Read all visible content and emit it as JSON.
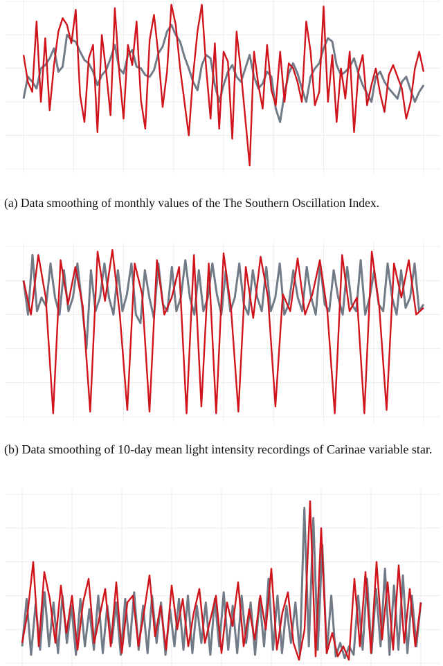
{
  "colors": {
    "observed": "#717b88",
    "smoothed": "#d0141c",
    "grid": "#ececec"
  },
  "captions": {
    "a": "(a) Data smoothing of monthly values of the The Southern Oscillation Index.",
    "b": "(b) Data smoothing of 10-day mean light intensity recordings of Carinae variable star."
  },
  "chart_data": [
    {
      "type": "line",
      "title": "",
      "xlabel": "",
      "ylabel": "",
      "grid": true,
      "ylim": [
        0,
        1
      ],
      "series": [
        {
          "values": [
            0.42,
            0.55,
            0.52,
            0.48,
            0.6,
            0.62,
            0.66,
            0.72,
            0.58,
            0.61,
            0.8,
            0.77,
            0.76,
            0.7,
            0.65,
            0.63,
            0.58,
            0.5,
            0.56,
            0.59,
            0.66,
            0.74,
            0.6,
            0.57,
            0.68,
            0.71,
            0.61,
            0.6,
            0.56,
            0.55,
            0.59,
            0.69,
            0.73,
            0.82,
            0.86,
            0.8,
            0.76,
            0.67,
            0.6,
            0.52,
            0.47,
            0.62,
            0.68,
            0.66,
            0.5,
            0.4,
            0.5,
            0.58,
            0.62,
            0.55,
            0.52,
            0.6,
            0.68,
            0.55,
            0.48,
            0.51,
            0.58,
            0.55,
            0.36,
            0.28,
            0.45,
            0.57,
            0.63,
            0.57,
            0.48,
            0.4,
            0.55,
            0.6,
            0.63,
            0.72,
            0.78,
            0.76,
            0.62,
            0.56,
            0.58,
            0.61,
            0.66,
            0.57,
            0.5,
            0.45,
            0.4,
            0.55,
            0.58,
            0.52,
            0.48,
            0.45,
            0.42,
            0.52,
            0.55,
            0.47,
            0.4,
            0.46,
            0.5
          ]
        },
        {
          "values": [
            0.68,
            0.52,
            0.46,
            0.88,
            0.4,
            0.78,
            0.35,
            0.62,
            0.82,
            0.9,
            0.86,
            0.75,
            0.95,
            0.44,
            0.28,
            0.66,
            0.74,
            0.22,
            0.8,
            0.58,
            0.32,
            0.96,
            0.58,
            0.3,
            0.74,
            0.62,
            0.88,
            0.41,
            0.24,
            0.77,
            0.92,
            0.68,
            0.37,
            0.58,
            0.98,
            0.86,
            0.6,
            0.4,
            0.2,
            0.56,
            0.82,
            0.98,
            0.6,
            0.3,
            0.75,
            0.24,
            0.7,
            0.64,
            0.18,
            0.82,
            0.58,
            0.3,
            0.02,
            0.7,
            0.5,
            0.36,
            0.74,
            0.47,
            0.38,
            0.7,
            0.4,
            0.63,
            0.6,
            0.52,
            0.4,
            0.88,
            0.7,
            0.38,
            0.46,
            0.97,
            0.4,
            0.68,
            0.28,
            0.6,
            0.42,
            0.7,
            0.22,
            0.58,
            0.68,
            0.38,
            0.5,
            0.6,
            0.45,
            0.34,
            0.56,
            0.62,
            0.55,
            0.48,
            0.3,
            0.4,
            0.6,
            0.7,
            0.58
          ]
        }
      ]
    },
    {
      "type": "line",
      "title": "",
      "xlabel": "",
      "ylabel": "",
      "grid": true,
      "ylim": [
        0,
        1
      ],
      "series": [
        {
          "values": [
            0.8,
            0.6,
            0.95,
            0.62,
            0.7,
            0.65,
            0.9,
            0.7,
            0.6,
            0.86,
            0.62,
            0.7,
            0.9,
            0.66,
            0.4,
            0.86,
            0.62,
            0.7,
            0.9,
            0.7,
            0.6,
            0.86,
            0.62,
            0.72,
            0.9,
            0.6,
            0.55,
            0.86,
            0.7,
            0.58,
            0.9,
            0.66,
            0.62,
            0.88,
            0.62,
            0.7,
            0.92,
            0.7,
            0.6,
            0.86,
            0.62,
            0.7,
            0.9,
            0.72,
            0.6,
            0.86,
            0.62,
            0.7,
            0.9,
            0.66,
            0.6,
            0.86,
            0.7,
            0.62,
            0.88,
            0.62,
            0.7,
            0.9,
            0.6,
            0.66,
            0.86,
            0.7,
            0.62,
            0.88,
            0.7,
            0.6,
            0.9,
            0.66,
            0.62,
            0.86,
            0.7,
            0.6,
            0.88,
            0.66,
            0.62,
            0.92,
            0.6,
            0.7,
            0.86,
            0.66,
            0.62,
            0.9,
            0.7,
            0.6,
            0.86,
            0.64,
            0.7,
            0.9,
            0.62,
            0.66
          ]
        },
        {
          "values": [
            0.8,
            0.6,
            0.95,
            0.7,
            0.02,
            0.92,
            0.66,
            0.88,
            0.65,
            0.03,
            0.97,
            0.68,
            0.98,
            0.6,
            0.04,
            0.9,
            0.72,
            0.03,
            0.92,
            0.6,
            0.7,
            0.88,
            0.02,
            0.95,
            0.06,
            0.9,
            0.02,
            0.96,
            0.64,
            0.03,
            0.88,
            0.58,
            0.94,
            0.7,
            0.06,
            0.72,
            0.62,
            0.93,
            0.6,
            0.72,
            0.92,
            0.62,
            0.02,
            0.95,
            0.62,
            0.7,
            0.02,
            0.97,
            0.65,
            0.04,
            0.9,
            0.7,
            0.92,
            0.6,
            0.64
          ]
        }
      ]
    },
    {
      "type": "line",
      "title": "",
      "xlabel": "",
      "ylabel": "",
      "grid": true,
      "ylim": [
        0,
        1
      ],
      "series": [
        {
          "values": [
            0.1,
            0.38,
            0.05,
            0.35,
            0.08,
            0.42,
            0.1,
            0.36,
            0.06,
            0.4,
            0.12,
            0.34,
            0.05,
            0.38,
            0.1,
            0.32,
            0.08,
            0.4,
            0.06,
            0.34,
            0.12,
            0.36,
            0.05,
            0.38,
            0.1,
            0.42,
            0.08,
            0.34,
            0.06,
            0.4,
            0.12,
            0.36,
            0.05,
            0.32,
            0.1,
            0.38,
            0.08,
            0.4,
            0.06,
            0.34,
            0.12,
            0.36,
            0.05,
            0.38,
            0.1,
            0.42,
            0.08,
            0.34,
            0.06,
            0.4,
            0.12,
            0.36,
            0.05,
            0.38,
            0.1,
            0.5,
            0.08,
            0.4,
            0.06,
            0.34,
            0.12,
            0.36,
            0.05,
            0.92,
            0.1,
            0.86,
            0.08,
            0.7,
            0.06,
            0.4,
            0.04,
            0.12,
            0.03,
            0.1,
            0.05,
            0.4,
            0.08,
            0.5,
            0.06,
            0.44,
            0.1,
            0.56,
            0.05,
            0.46,
            0.08,
            0.52,
            0.06,
            0.4,
            0.1,
            0.36
          ]
        },
        {
          "values": [
            0.12,
            0.3,
            0.6,
            0.1,
            0.54,
            0.38,
            0.12,
            0.46,
            0.18,
            0.4,
            0.08,
            0.36,
            0.5,
            0.12,
            0.28,
            0.44,
            0.1,
            0.48,
            0.06,
            0.36,
            0.4,
            0.1,
            0.3,
            0.52,
            0.16,
            0.34,
            0.08,
            0.46,
            0.2,
            0.38,
            0.1,
            0.3,
            0.44,
            0.12,
            0.26,
            0.4,
            0.06,
            0.36,
            0.22,
            0.48,
            0.1,
            0.32,
            0.14,
            0.4,
            0.2,
            0.56,
            0.08,
            0.3,
            0.42,
            0.12,
            0.02,
            0.2,
            0.96,
            0.04,
            0.8,
            0.06,
            0.18,
            0.04,
            0.1,
            0.02,
            0.5,
            0.1,
            0.54,
            0.06,
            0.6,
            0.14,
            0.48,
            0.08,
            0.58,
            0.12,
            0.44,
            0.1,
            0.36
          ]
        }
      ]
    }
  ]
}
